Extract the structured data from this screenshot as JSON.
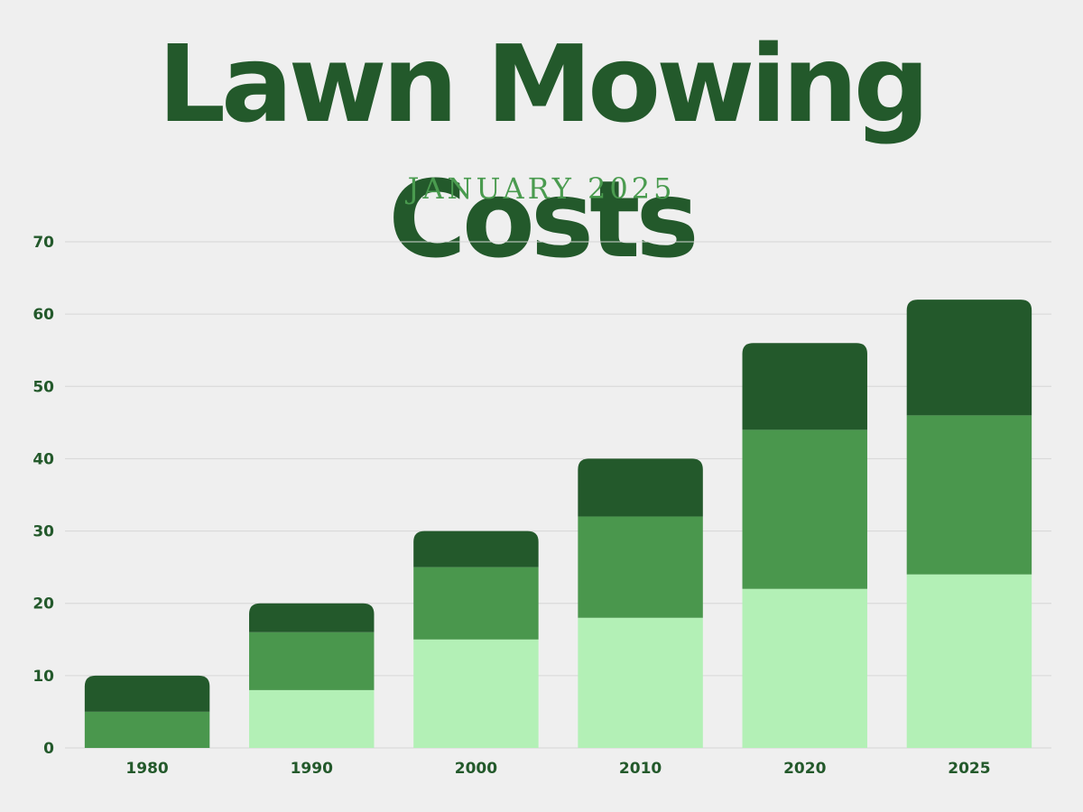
{
  "chart_data": {
    "type": "bar",
    "stacked": true,
    "title": "Lawn Mowing Costs",
    "subtitle": "JANUARY 2025",
    "categories": [
      "1980",
      "1990",
      "2000",
      "2010",
      "2020",
      "2025"
    ],
    "series": [
      {
        "values": [
          0,
          8,
          15,
          18,
          22,
          24
        ],
        "color": "#b3f0b6"
      },
      {
        "values": [
          5,
          8,
          10,
          14,
          22,
          22
        ],
        "color": "#4a974d"
      },
      {
        "values": [
          5,
          4,
          5,
          8,
          12,
          16
        ],
        "color": "#23592b"
      }
    ],
    "ylim": [
      0,
      70
    ],
    "yticks": [
      0,
      10,
      20,
      30,
      40,
      50,
      60,
      70
    ],
    "grid": true,
    "legend": "none"
  }
}
